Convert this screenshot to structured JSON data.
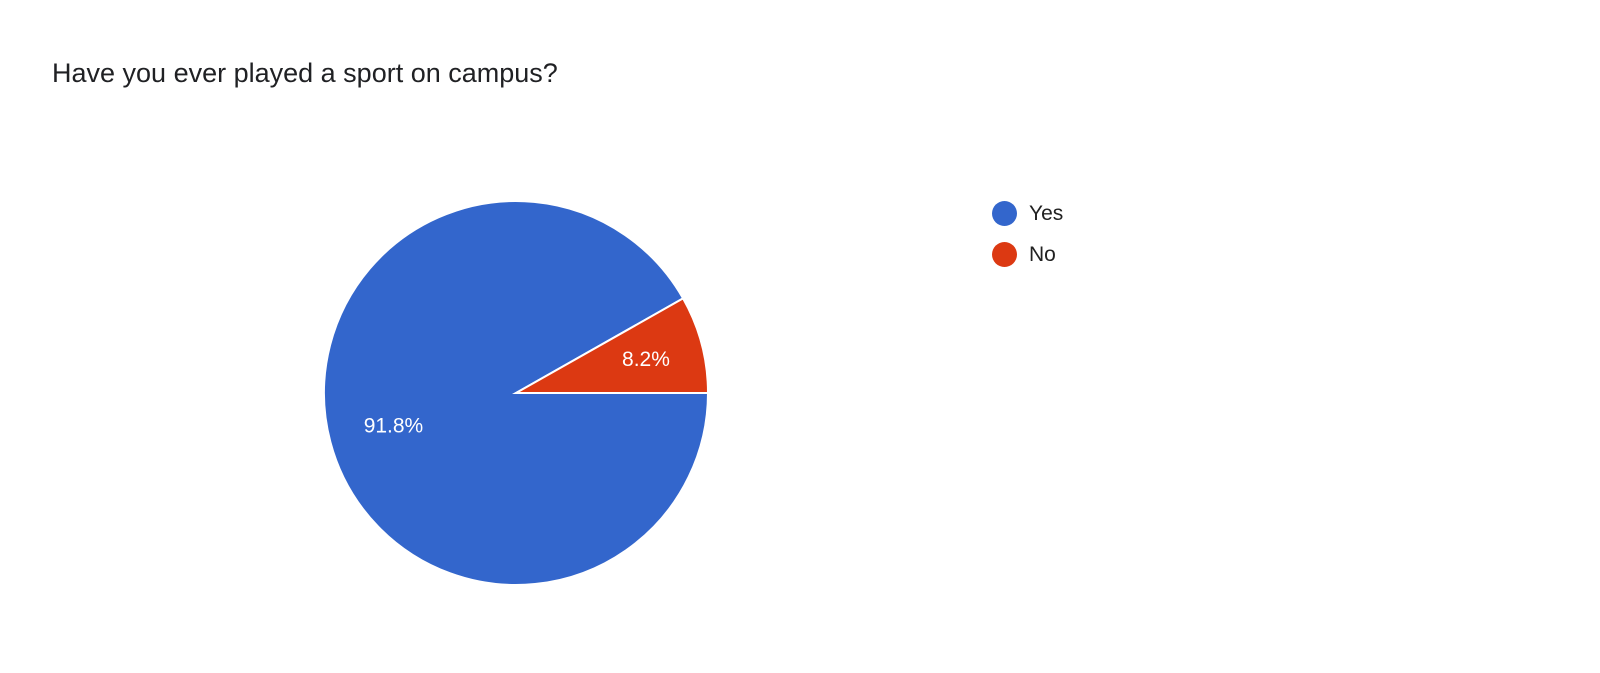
{
  "chart_data": {
    "type": "pie",
    "title": "Have you ever played a sport on campus?",
    "categories": [
      "Yes",
      "No"
    ],
    "values": [
      91.8,
      8.2
    ],
    "data_labels": [
      "91.8%",
      "8.2%"
    ],
    "colors": [
      "#3366CC",
      "#DC3912"
    ],
    "legend_position": "right"
  }
}
